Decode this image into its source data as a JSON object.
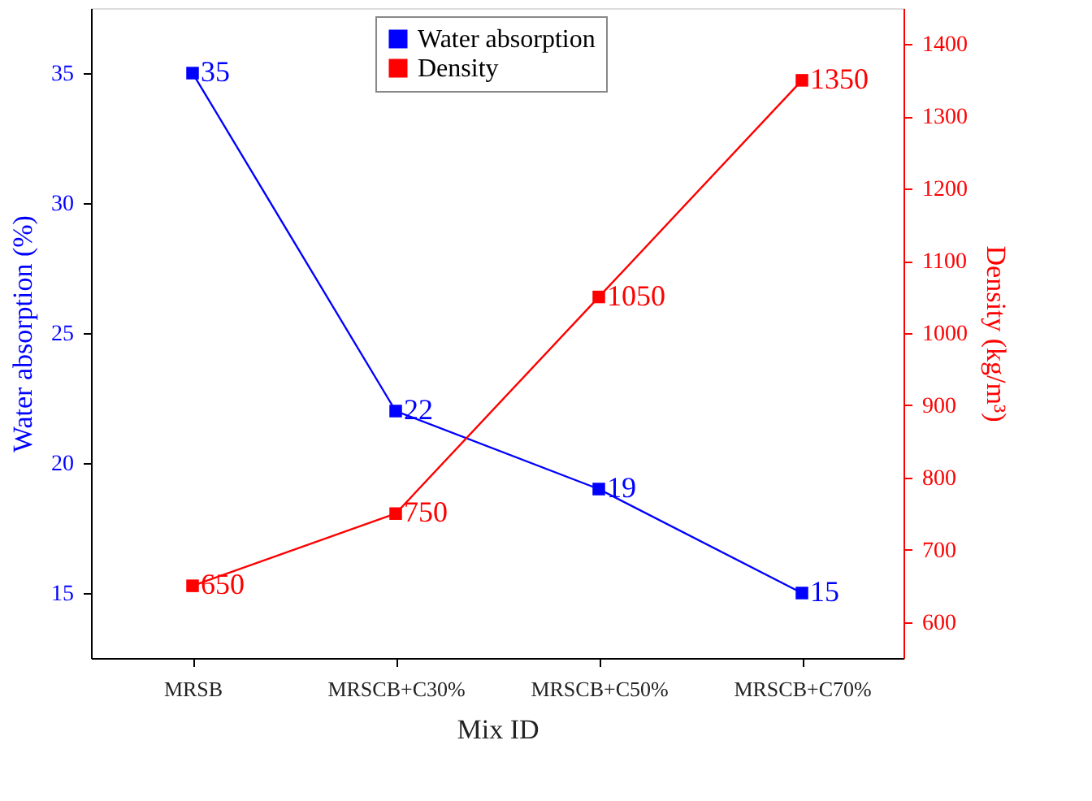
{
  "chart_data": {
    "type": "line",
    "xlabel": "Mix ID",
    "ylabel": "Water absorption (%)",
    "y2label": "Density (kg/m³)",
    "categories": [
      "MRSB",
      "MRSCB+C30%",
      "MRSCB+C50%",
      "MRSCB+C70%"
    ],
    "series": [
      {
        "name": "Water absorption",
        "color": "#0000ff",
        "values": [
          35,
          22,
          19,
          15
        ]
      },
      {
        "name": "Density",
        "color": "#ff0000",
        "values": [
          650,
          750,
          1050,
          1350
        ],
        "axis": "y2"
      }
    ],
    "ylim": [
      12.5,
      37.5
    ],
    "yticks": [
      15,
      20,
      25,
      30,
      35
    ],
    "y2lim": [
      550,
      1450
    ],
    "y2ticks": [
      600,
      700,
      800,
      900,
      1000,
      1100,
      1200,
      1300,
      1400
    ],
    "marker": "square",
    "line_style": "solid",
    "data_labels": true,
    "grid": false,
    "legend": "top"
  }
}
